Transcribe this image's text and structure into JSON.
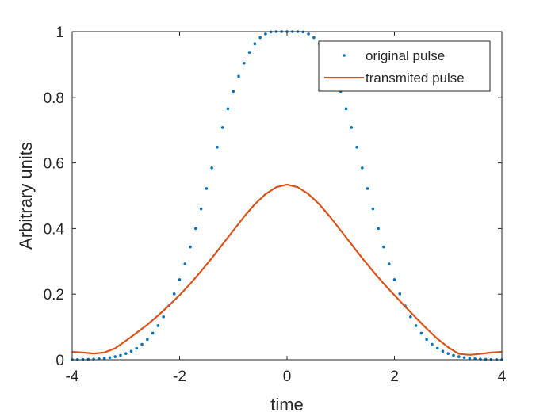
{
  "chart_data": {
    "type": "line",
    "title": "",
    "xlabel": "time",
    "ylabel": "Arbitrary units",
    "xlim": [
      -4,
      4
    ],
    "ylim": [
      0,
      1
    ],
    "xticks": [
      -4,
      -2,
      0,
      2,
      4
    ],
    "yticks": [
      0,
      0.2,
      0.4,
      0.6,
      0.8,
      1
    ],
    "xtick_labels": [
      "-4",
      "-2",
      "0",
      "2",
      "4"
    ],
    "ytick_labels": [
      "0",
      "0.2",
      "0.4",
      "0.6",
      "0.8",
      "1"
    ],
    "grid": false,
    "legend_position": "top-right",
    "series": [
      {
        "name": "original pulse",
        "style": "dotted-markers",
        "color": "#0072BD",
        "x": [
          -4.0,
          -3.9,
          -3.8,
          -3.7,
          -3.6,
          -3.5,
          -3.4,
          -3.3,
          -3.2,
          -3.1,
          -3.0,
          -2.9,
          -2.8,
          -2.7,
          -2.6,
          -2.5,
          -2.4,
          -2.3,
          -2.2,
          -2.1,
          -2.0,
          -1.9,
          -1.8,
          -1.7,
          -1.6,
          -1.5,
          -1.4,
          -1.3,
          -1.2,
          -1.1,
          -1.0,
          -0.9,
          -0.8,
          -0.7,
          -0.6,
          -0.5,
          -0.4,
          -0.3,
          -0.2,
          -0.1,
          0.0,
          0.1,
          0.2,
          0.3,
          0.4,
          0.5,
          0.6,
          0.7,
          0.8,
          0.9,
          1.0,
          1.1,
          1.2,
          1.3,
          1.4,
          1.5,
          1.6,
          1.7,
          1.8,
          1.9,
          2.0,
          2.1,
          2.2,
          2.3,
          2.4,
          2.5,
          2.6,
          2.7,
          2.8,
          2.9,
          3.0,
          3.1,
          3.2,
          3.3,
          3.4,
          3.5,
          3.6,
          3.7,
          3.8,
          3.9,
          4.0
        ],
        "y": [
          0.0003,
          0.0005,
          0.0008,
          0.0013,
          0.002,
          0.003,
          0.0045,
          0.0066,
          0.0095,
          0.0135,
          0.019,
          0.026,
          0.035,
          0.047,
          0.062,
          0.081,
          0.104,
          0.131,
          0.164,
          0.201,
          0.244,
          0.292,
          0.344,
          0.4,
          0.46,
          0.522,
          0.585,
          0.648,
          0.708,
          0.765,
          0.818,
          0.864,
          0.904,
          0.937,
          0.963,
          0.982,
          0.993,
          0.999,
          1.0,
          1.0,
          1.0,
          1.0,
          1.0,
          0.999,
          0.993,
          0.982,
          0.963,
          0.937,
          0.904,
          0.864,
          0.818,
          0.765,
          0.708,
          0.648,
          0.585,
          0.522,
          0.46,
          0.4,
          0.344,
          0.292,
          0.244,
          0.201,
          0.164,
          0.131,
          0.104,
          0.081,
          0.062,
          0.047,
          0.035,
          0.026,
          0.019,
          0.0135,
          0.0095,
          0.0066,
          0.0045,
          0.003,
          0.002,
          0.0013,
          0.0008,
          0.0005,
          0.0003
        ]
      },
      {
        "name": "transmited pulse",
        "style": "solid-line",
        "color": "#D95319",
        "x": [
          -4.0,
          -3.8,
          -3.6,
          -3.4,
          -3.2,
          -3.0,
          -2.8,
          -2.6,
          -2.4,
          -2.2,
          -2.0,
          -1.8,
          -1.6,
          -1.4,
          -1.2,
          -1.0,
          -0.8,
          -0.6,
          -0.4,
          -0.2,
          0.0,
          0.2,
          0.4,
          0.6,
          0.8,
          1.0,
          1.2,
          1.4,
          1.6,
          1.8,
          2.0,
          2.2,
          2.4,
          2.6,
          2.8,
          3.0,
          3.2,
          3.4,
          3.6,
          3.8,
          4.0
        ],
        "y": [
          0.024,
          0.022,
          0.019,
          0.022,
          0.035,
          0.058,
          0.082,
          0.107,
          0.135,
          0.165,
          0.197,
          0.232,
          0.27,
          0.31,
          0.352,
          0.394,
          0.436,
          0.474,
          0.505,
          0.526,
          0.534,
          0.526,
          0.505,
          0.474,
          0.436,
          0.394,
          0.352,
          0.31,
          0.27,
          0.232,
          0.197,
          0.162,
          0.128,
          0.095,
          0.064,
          0.038,
          0.018,
          0.015,
          0.018,
          0.022,
          0.024
        ]
      }
    ]
  }
}
